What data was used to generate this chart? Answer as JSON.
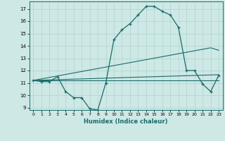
{
  "xlabel": "Humidex (Indice chaleur)",
  "ylabel": "",
  "background_color": "#cde8e5",
  "grid_color": "#afd4d0",
  "line_color": "#1a6b6b",
  "xlim": [
    -0.5,
    23.5
  ],
  "ylim": [
    8.8,
    17.6
  ],
  "yticks": [
    9,
    10,
    11,
    12,
    13,
    14,
    15,
    16,
    17
  ],
  "xticks": [
    0,
    1,
    2,
    3,
    4,
    5,
    6,
    7,
    8,
    9,
    10,
    11,
    12,
    13,
    14,
    15,
    16,
    17,
    18,
    19,
    20,
    21,
    22,
    23
  ],
  "main_curve": [
    11.2,
    11.1,
    11.1,
    11.5,
    10.3,
    9.8,
    9.8,
    8.9,
    8.8,
    11.0,
    14.5,
    15.3,
    15.8,
    16.5,
    17.2,
    17.2,
    16.8,
    16.5,
    15.5,
    12.0,
    12.0,
    10.9,
    10.3,
    11.6
  ],
  "trend_line1": [
    11.2,
    11.22,
    11.24,
    11.26,
    11.28,
    11.3,
    11.32,
    11.34,
    11.36,
    11.38,
    11.4,
    11.42,
    11.44,
    11.46,
    11.48,
    11.5,
    11.52,
    11.54,
    11.56,
    11.58,
    11.6,
    11.62,
    11.64,
    11.66
  ],
  "trend_line2": [
    11.2,
    11.32,
    11.44,
    11.56,
    11.68,
    11.8,
    11.92,
    12.04,
    12.16,
    12.28,
    12.4,
    12.52,
    12.64,
    12.76,
    12.88,
    13.0,
    13.12,
    13.24,
    13.36,
    13.48,
    13.6,
    13.72,
    13.84,
    13.64
  ],
  "flat_line": [
    11.2,
    11.2,
    11.2,
    11.2,
    11.2,
    11.2,
    11.2,
    11.2,
    11.2,
    11.2,
    11.2,
    11.2,
    11.2,
    11.2,
    11.2,
    11.2,
    11.2,
    11.2,
    11.2,
    11.2,
    11.2,
    11.2,
    11.2,
    11.2
  ]
}
